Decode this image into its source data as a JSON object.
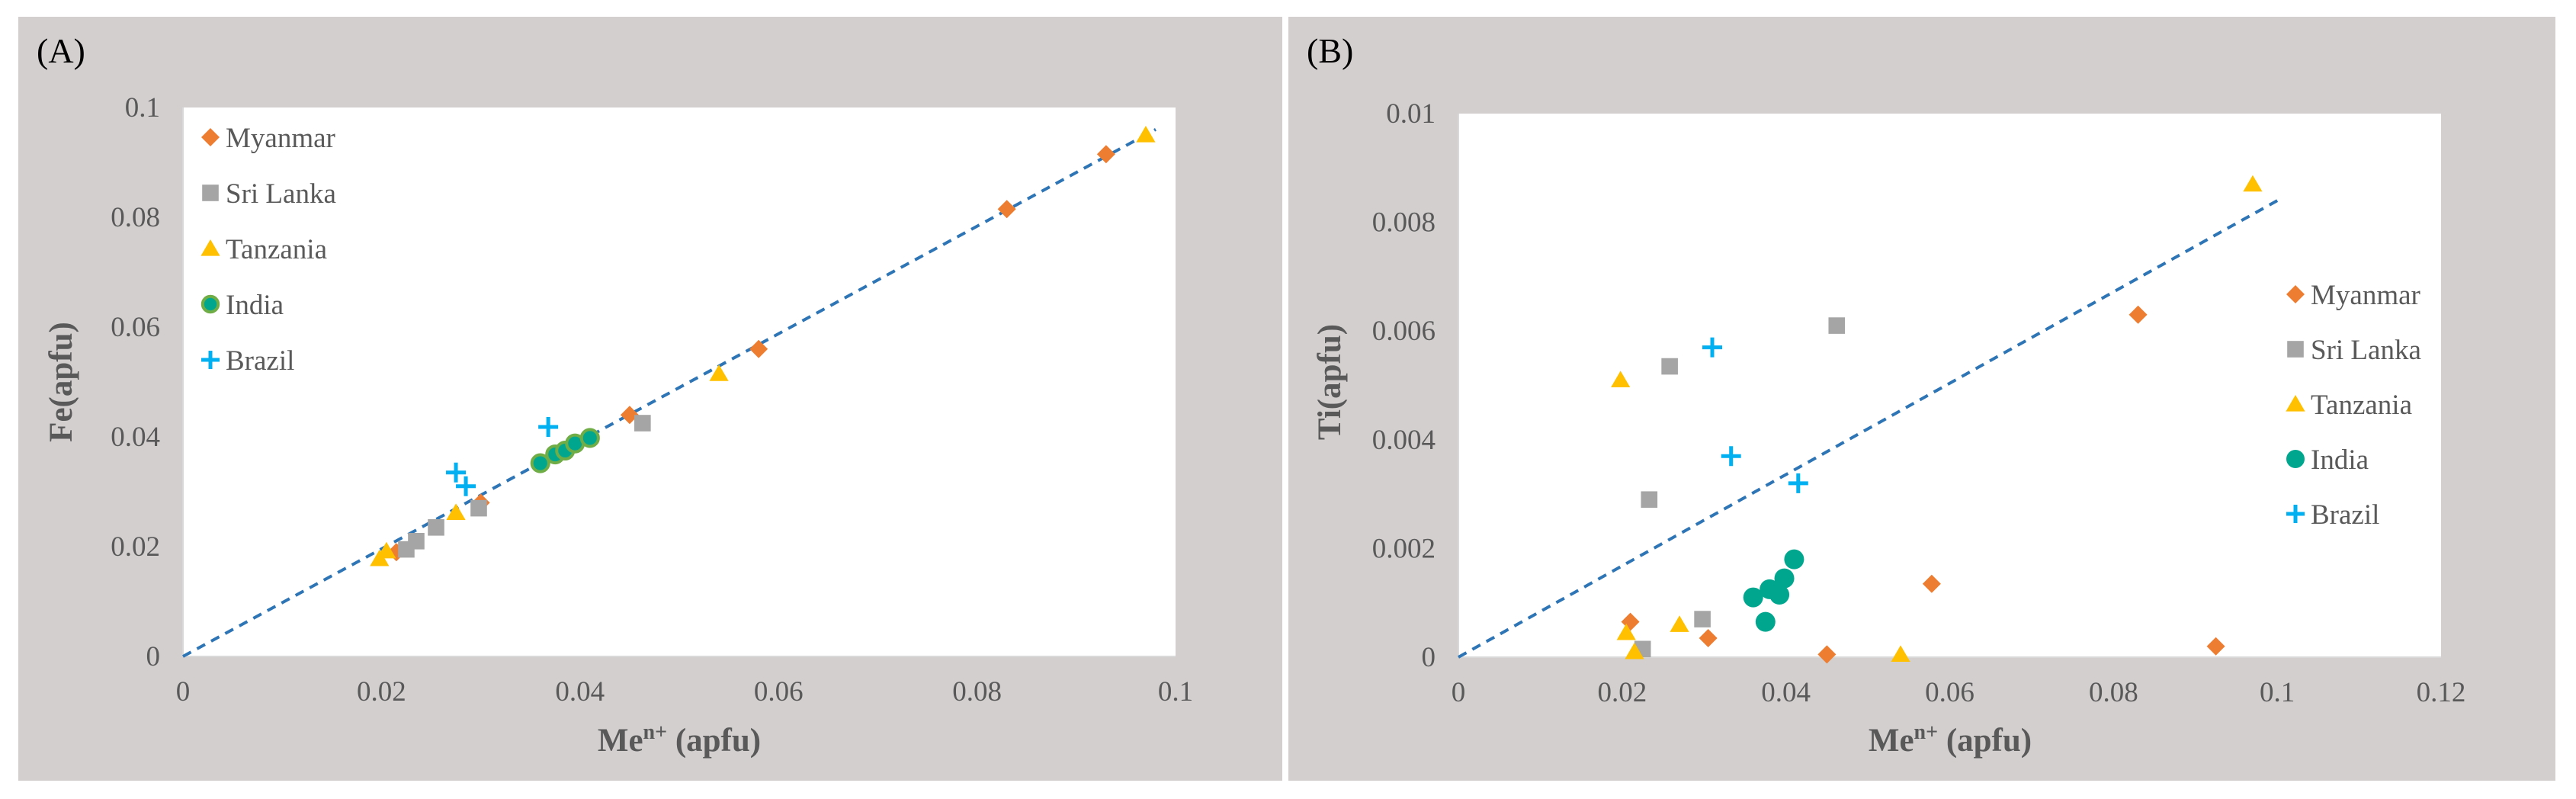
{
  "chart_data": [
    {
      "panel_label": "(A)",
      "type": "scatter",
      "xlabel": "Me",
      "xlabel_sup": "n+",
      "xlabel_suffix": " (apfu)",
      "ylabel": "Fe(apfu)",
      "xlim": [
        0,
        0.1
      ],
      "ylim": [
        0,
        0.1
      ],
      "xticks": [
        "0",
        "0.02",
        "0.04",
        "0.06",
        "0.08",
        "0.1"
      ],
      "yticks": [
        "0",
        "0.02",
        "0.04",
        "0.06",
        "0.08",
        "0.1"
      ],
      "legend_position": "top-left",
      "trendline": {
        "x": [
          0,
          0.098
        ],
        "y": [
          0,
          0.096
        ]
      },
      "series": [
        {
          "name": "Myanmar",
          "marker": "diamond",
          "color": "#ed7d31",
          "points": [
            [
              0.0215,
              0.019
            ],
            [
              0.03,
              0.028
            ],
            [
              0.045,
              0.044
            ],
            [
              0.058,
              0.056
            ],
            [
              0.083,
              0.0815
            ],
            [
              0.093,
              0.0915
            ]
          ]
        },
        {
          "name": "Sri Lanka",
          "marker": "square",
          "color": "#a5a5a5",
          "points": [
            [
              0.0225,
              0.0195
            ],
            [
              0.0235,
              0.021
            ],
            [
              0.0255,
              0.0235
            ],
            [
              0.0298,
              0.027
            ],
            [
              0.0463,
              0.0425
            ]
          ]
        },
        {
          "name": "Tanzania",
          "marker": "triangle",
          "color": "#ffc000",
          "points": [
            [
              0.0198,
              0.0178
            ],
            [
              0.0205,
              0.0192
            ],
            [
              0.0275,
              0.0262
            ],
            [
              0.054,
              0.0515
            ],
            [
              0.097,
              0.095
            ]
          ]
        },
        {
          "name": "India",
          "marker": "circle",
          "color": "#70ad47",
          "points": [
            [
              0.036,
              0.0352
            ],
            [
              0.0375,
              0.0368
            ],
            [
              0.0385,
              0.0375
            ],
            [
              0.0395,
              0.0388
            ],
            [
              0.041,
              0.0398
            ]
          ]
        },
        {
          "name": "Brazil",
          "marker": "plus",
          "color": "#00b0f0",
          "points": [
            [
              0.0275,
              0.0335
            ],
            [
              0.0285,
              0.031
            ],
            [
              0.0368,
              0.0418
            ]
          ]
        }
      ]
    },
    {
      "panel_label": "(B)",
      "type": "scatter",
      "xlabel": "Me",
      "xlabel_sup": "n+",
      "xlabel_suffix": " (apfu)",
      "ylabel": "Ti(apfu)",
      "xlim": [
        0,
        0.12
      ],
      "ylim": [
        0,
        0.01
      ],
      "xticks": [
        "0",
        "0.02",
        "0.04",
        "0.06",
        "0.08",
        "0.1",
        "0.12"
      ],
      "yticks": [
        "0",
        "0.002",
        "0.004",
        "0.006",
        "0.008",
        "0.01"
      ],
      "legend_position": "right",
      "trendline": {
        "x": [
          0,
          0.1
        ],
        "y": [
          0,
          0.0084
        ]
      },
      "series": [
        {
          "name": "Myanmar",
          "marker": "diamond",
          "color": "#ed7d31",
          "points": [
            [
              0.021,
              0.00065
            ],
            [
              0.0305,
              0.00035
            ],
            [
              0.045,
              5e-05
            ],
            [
              0.0578,
              0.00135
            ],
            [
              0.083,
              0.0063
            ],
            [
              0.0925,
              0.0002
            ]
          ]
        },
        {
          "name": "Sri Lanka",
          "marker": "square",
          "color": "#a5a5a5",
          "points": [
            [
              0.0225,
              0.00015
            ],
            [
              0.0233,
              0.0029
            ],
            [
              0.0258,
              0.00535
            ],
            [
              0.0298,
              0.0007
            ],
            [
              0.0462,
              0.0061
            ]
          ]
        },
        {
          "name": "Tanzania",
          "marker": "triangle",
          "color": "#ffc000",
          "points": [
            [
              0.0198,
              0.0051
            ],
            [
              0.0205,
              0.00045
            ],
            [
              0.0215,
              0.0001
            ],
            [
              0.027,
              0.0006
            ],
            [
              0.054,
              5e-05
            ],
            [
              0.097,
              0.0087
            ]
          ]
        },
        {
          "name": "India",
          "marker": "circle",
          "color": "#00a78e",
          "points": [
            [
              0.036,
              0.0011
            ],
            [
              0.0375,
              0.00065
            ],
            [
              0.038,
              0.00125
            ],
            [
              0.0392,
              0.00115
            ],
            [
              0.0398,
              0.00145
            ],
            [
              0.041,
              0.0018
            ]
          ]
        },
        {
          "name": "Brazil",
          "marker": "plus",
          "color": "#00b0f0",
          "points": [
            [
              0.031,
              0.0057
            ],
            [
              0.0333,
              0.0037
            ],
            [
              0.0415,
              0.0032
            ]
          ]
        }
      ]
    }
  ]
}
